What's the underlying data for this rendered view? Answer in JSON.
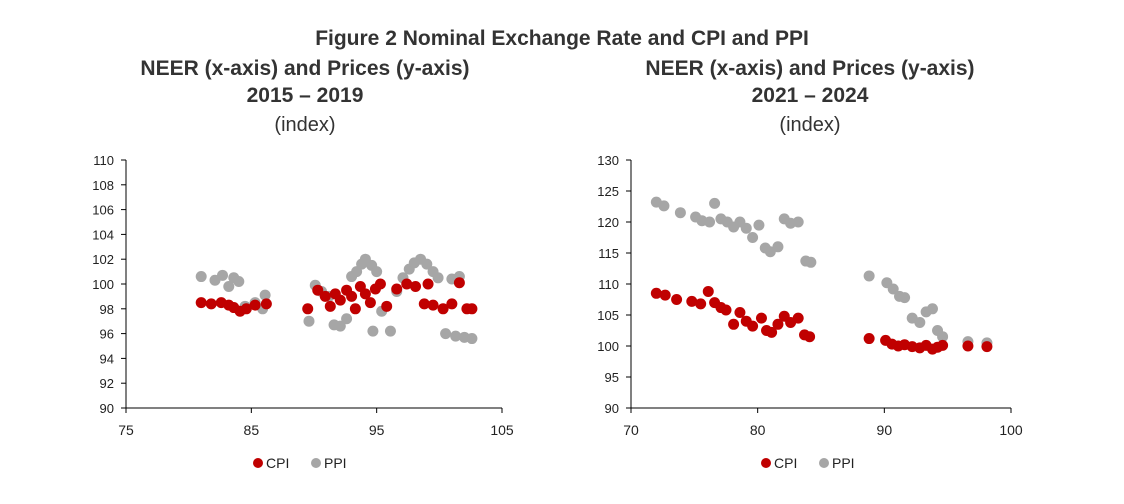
{
  "figure_title": "Figure 2 Nominal Exchange Rate and CPI and PPI",
  "colors": {
    "cpi": "#c00000",
    "ppi": "#a6a6a6",
    "axis": "#000000"
  },
  "chart_data": [
    {
      "type": "scatter",
      "title": "NEER (x-axis) and Prices (y-axis)",
      "subtitle": "2015 – 2019",
      "unit": "(index)",
      "xlabel": "",
      "ylabel": "",
      "xlim": [
        75,
        105
      ],
      "ylim": [
        90,
        110
      ],
      "x_ticks": [
        75,
        85,
        95,
        105
      ],
      "y_ticks": [
        90,
        92,
        94,
        96,
        98,
        100,
        102,
        104,
        106,
        108,
        110
      ],
      "grid": false,
      "legend": "bottom",
      "series": [
        {
          "name": "CPI",
          "color": "#c00000",
          "points": [
            [
              81.0,
              98.5
            ],
            [
              81.8,
              98.4
            ],
            [
              82.6,
              98.5
            ],
            [
              83.2,
              98.3
            ],
            [
              83.6,
              98.1
            ],
            [
              84.1,
              97.8
            ],
            [
              84.6,
              98.0
            ],
            [
              85.3,
              98.3
            ],
            [
              86.2,
              98.4
            ],
            [
              89.5,
              98.0
            ],
            [
              90.3,
              99.5
            ],
            [
              90.9,
              99.0
            ],
            [
              91.3,
              98.2
            ],
            [
              91.7,
              99.2
            ],
            [
              92.1,
              98.7
            ],
            [
              92.6,
              99.5
            ],
            [
              93.0,
              99.0
            ],
            [
              93.3,
              98.0
            ],
            [
              93.7,
              99.8
            ],
            [
              94.1,
              99.2
            ],
            [
              94.5,
              98.5
            ],
            [
              94.9,
              99.6
            ],
            [
              95.3,
              100.0
            ],
            [
              95.8,
              98.2
            ],
            [
              96.6,
              99.6
            ],
            [
              97.4,
              100.0
            ],
            [
              98.1,
              99.8
            ],
            [
              98.8,
              98.4
            ],
            [
              99.1,
              100.0
            ],
            [
              99.5,
              98.3
            ],
            [
              100.3,
              98.0
            ],
            [
              101.0,
              98.4
            ],
            [
              101.6,
              100.1
            ],
            [
              102.2,
              98.0
            ],
            [
              102.6,
              98.0
            ]
          ]
        },
        {
          "name": "PPI",
          "color": "#a6a6a6",
          "points": [
            [
              81.0,
              100.6
            ],
            [
              82.1,
              100.3
            ],
            [
              82.7,
              100.7
            ],
            [
              83.2,
              99.8
            ],
            [
              83.6,
              100.5
            ],
            [
              84.0,
              100.2
            ],
            [
              84.5,
              98.2
            ],
            [
              85.3,
              98.5
            ],
            [
              85.9,
              98.0
            ],
            [
              86.1,
              99.1
            ],
            [
              89.6,
              97.0
            ],
            [
              90.1,
              99.9
            ],
            [
              90.6,
              99.4
            ],
            [
              91.2,
              99.0
            ],
            [
              91.6,
              96.7
            ],
            [
              92.1,
              96.6
            ],
            [
              92.6,
              97.2
            ],
            [
              93.0,
              100.6
            ],
            [
              93.4,
              101.0
            ],
            [
              93.8,
              101.6
            ],
            [
              94.1,
              102.0
            ],
            [
              94.6,
              101.5
            ],
            [
              95.0,
              101.0
            ],
            [
              95.4,
              97.8
            ],
            [
              94.7,
              96.2
            ],
            [
              96.1,
              96.2
            ],
            [
              96.6,
              99.4
            ],
            [
              97.1,
              100.5
            ],
            [
              97.6,
              101.2
            ],
            [
              98.0,
              101.7
            ],
            [
              98.5,
              102.0
            ],
            [
              99.0,
              101.6
            ],
            [
              99.5,
              101.0
            ],
            [
              99.9,
              100.5
            ],
            [
              100.5,
              96.0
            ],
            [
              101.0,
              100.4
            ],
            [
              101.6,
              100.6
            ],
            [
              101.3,
              95.8
            ],
            [
              102.0,
              95.7
            ],
            [
              102.6,
              95.6
            ]
          ]
        }
      ]
    },
    {
      "type": "scatter",
      "title": "NEER (x-axis) and Prices (y-axis)",
      "subtitle": "2021 – 2024",
      "unit": "(index)",
      "xlabel": "",
      "ylabel": "",
      "xlim": [
        70,
        100
      ],
      "ylim": [
        90,
        130
      ],
      "x_ticks": [
        70,
        80,
        90,
        100
      ],
      "y_ticks": [
        90,
        95,
        100,
        105,
        110,
        115,
        120,
        125,
        130
      ],
      "grid": false,
      "legend": "bottom",
      "series": [
        {
          "name": "CPI",
          "color": "#c00000",
          "points": [
            [
              72.0,
              108.5
            ],
            [
              72.7,
              108.2
            ],
            [
              73.6,
              107.5
            ],
            [
              74.8,
              107.2
            ],
            [
              75.5,
              106.8
            ],
            [
              76.1,
              108.8
            ],
            [
              76.6,
              107.0
            ],
            [
              77.1,
              106.2
            ],
            [
              77.5,
              105.8
            ],
            [
              78.1,
              103.5
            ],
            [
              78.6,
              105.4
            ],
            [
              79.1,
              104.0
            ],
            [
              79.6,
              103.2
            ],
            [
              80.3,
              104.5
            ],
            [
              80.7,
              102.5
            ],
            [
              81.1,
              102.2
            ],
            [
              81.6,
              103.5
            ],
            [
              82.1,
              104.8
            ],
            [
              82.6,
              103.8
            ],
            [
              83.2,
              104.5
            ],
            [
              83.7,
              101.8
            ],
            [
              84.1,
              101.5
            ],
            [
              88.8,
              101.2
            ],
            [
              90.1,
              100.9
            ],
            [
              90.6,
              100.3
            ],
            [
              91.1,
              100.0
            ],
            [
              91.6,
              100.2
            ],
            [
              92.2,
              99.9
            ],
            [
              92.8,
              99.7
            ],
            [
              93.3,
              100.1
            ],
            [
              93.8,
              99.5
            ],
            [
              94.2,
              99.8
            ],
            [
              94.6,
              100.1
            ],
            [
              96.6,
              100.0
            ],
            [
              98.1,
              99.9
            ]
          ]
        },
        {
          "name": "PPI",
          "color": "#a6a6a6",
          "points": [
            [
              72.0,
              123.2
            ],
            [
              72.6,
              122.6
            ],
            [
              73.9,
              121.5
            ],
            [
              75.1,
              120.8
            ],
            [
              75.6,
              120.2
            ],
            [
              76.2,
              120.0
            ],
            [
              76.6,
              123.0
            ],
            [
              77.1,
              120.5
            ],
            [
              77.6,
              120.0
            ],
            [
              78.1,
              119.2
            ],
            [
              78.6,
              120.0
            ],
            [
              79.1,
              119.0
            ],
            [
              79.6,
              117.5
            ],
            [
              80.1,
              119.5
            ],
            [
              80.6,
              115.8
            ],
            [
              81.0,
              115.2
            ],
            [
              81.6,
              116.0
            ],
            [
              82.1,
              120.5
            ],
            [
              82.6,
              119.8
            ],
            [
              83.2,
              120.0
            ],
            [
              83.8,
              113.7
            ],
            [
              84.2,
              113.5
            ],
            [
              88.8,
              111.3
            ],
            [
              90.2,
              110.2
            ],
            [
              90.7,
              109.2
            ],
            [
              91.2,
              108.0
            ],
            [
              91.6,
              107.8
            ],
            [
              92.2,
              104.5
            ],
            [
              92.8,
              103.8
            ],
            [
              93.3,
              105.5
            ],
            [
              93.8,
              106.0
            ],
            [
              94.2,
              102.5
            ],
            [
              94.6,
              101.5
            ],
            [
              96.6,
              100.7
            ],
            [
              98.1,
              100.5
            ]
          ]
        }
      ]
    }
  ]
}
